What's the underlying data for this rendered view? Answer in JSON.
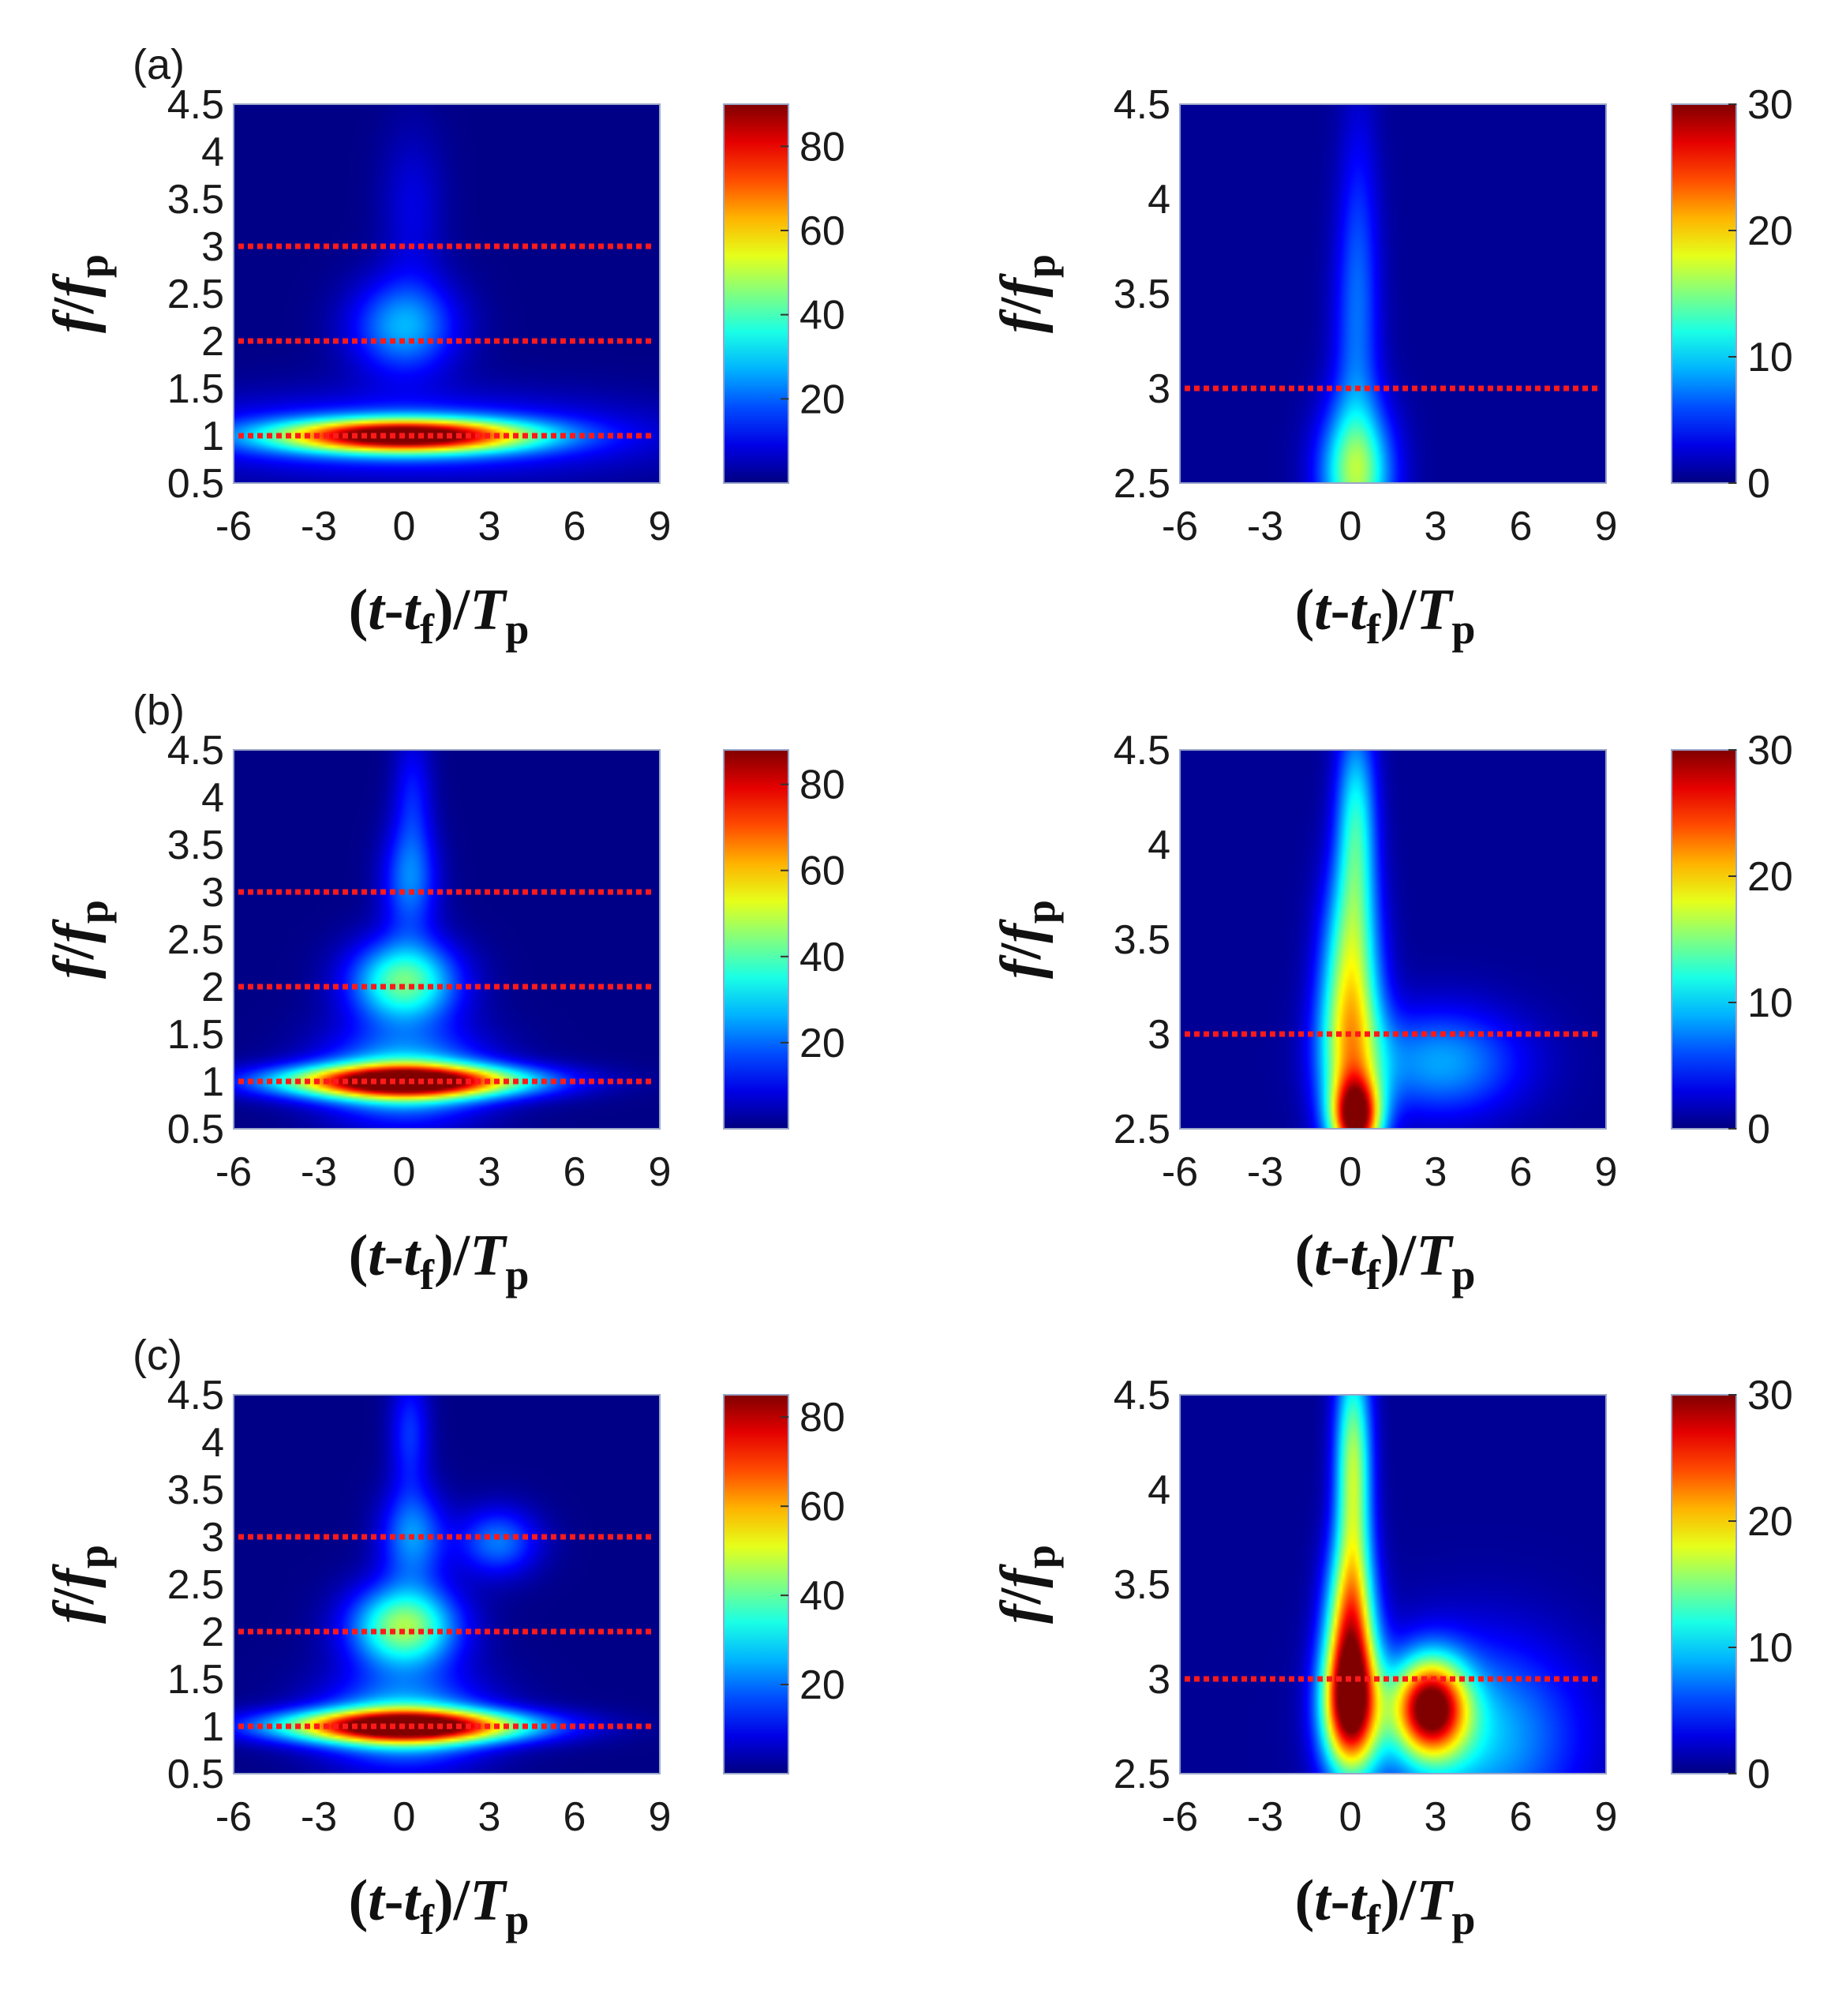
{
  "chart_data": [
    {
      "type": "heatmap",
      "panel_label": "(a)",
      "position": "row1-left",
      "xlabel": "(t-tf)/Tp",
      "ylabel": "f/fp",
      "xlim": [
        -6,
        9
      ],
      "ylim": [
        0.5,
        4.5
      ],
      "xticks": [
        "-6",
        "-3",
        "0",
        "3",
        "6",
        "9"
      ],
      "yticks": [
        "0.5",
        "1",
        "1.5",
        "2",
        "2.5",
        "3",
        "3.5",
        "4",
        "4.5"
      ],
      "reference_lines_y": [
        1,
        2,
        3
      ],
      "colorbar": {
        "range": [
          0,
          90
        ],
        "ticks": [
          "20",
          "40",
          "60",
          "80"
        ]
      },
      "blobs": [
        {
          "t": 0,
          "f": 1.0,
          "peak": 90,
          "st": 3.0,
          "sf": 0.12
        },
        {
          "t": 0,
          "f": 1.0,
          "peak": 18,
          "st": 6.0,
          "sf": 0.3
        },
        {
          "t": 0,
          "f": 2.15,
          "peak": 26,
          "st": 1.3,
          "sf": 0.35
        },
        {
          "t": 0.3,
          "f": 3.4,
          "peak": 8,
          "st": 0.8,
          "sf": 0.6
        }
      ]
    },
    {
      "type": "heatmap",
      "panel_label": "",
      "position": "row1-right",
      "xlabel": "(t-tf)/Tp",
      "ylabel": "f/fp",
      "xlim": [
        -6,
        9
      ],
      "ylim": [
        2.5,
        4.5
      ],
      "xticks": [
        "-6",
        "-3",
        "0",
        "3",
        "6",
        "9"
      ],
      "yticks": [
        "2.5",
        "3",
        "3.5",
        "4",
        "4.5"
      ],
      "reference_lines_y": [
        3
      ],
      "colorbar": {
        "range": [
          0,
          30
        ],
        "ticks": [
          "0",
          "10",
          "20",
          "30"
        ]
      },
      "blobs": [
        {
          "t": 0.2,
          "f": 2.55,
          "peak": 14,
          "st": 0.9,
          "sf": 0.25
        },
        {
          "t": 0.2,
          "f": 3.2,
          "peak": 5,
          "st": 0.6,
          "sf": 0.5
        },
        {
          "t": 0.3,
          "f": 3.9,
          "peak": 3,
          "st": 0.5,
          "sf": 0.5
        }
      ]
    },
    {
      "type": "heatmap",
      "panel_label": "(b)",
      "position": "row2-left",
      "xlabel": "(t-tf)/Tp",
      "ylabel": "f/fp",
      "xlim": [
        -6,
        9
      ],
      "ylim": [
        0.5,
        4.5
      ],
      "xticks": [
        "-6",
        "-3",
        "0",
        "3",
        "6",
        "9"
      ],
      "yticks": [
        "0.5",
        "1",
        "1.5",
        "2",
        "2.5",
        "3",
        "3.5",
        "4",
        "4.5"
      ],
      "reference_lines_y": [
        1,
        2,
        3
      ],
      "colorbar": {
        "range": [
          0,
          88
        ],
        "ticks": [
          "20",
          "40",
          "60",
          "80"
        ]
      },
      "blobs": [
        {
          "t": 0,
          "f": 1.0,
          "peak": 88,
          "st": 3.0,
          "sf": 0.12
        },
        {
          "t": 0,
          "f": 1.05,
          "peak": 30,
          "st": 2.0,
          "sf": 0.35
        },
        {
          "t": 0,
          "f": 2.05,
          "peak": 42,
          "st": 1.3,
          "sf": 0.3
        },
        {
          "t": 0.2,
          "f": 3.1,
          "peak": 20,
          "st": 0.7,
          "sf": 0.4
        },
        {
          "t": 0.3,
          "f": 4.0,
          "peak": 12,
          "st": 0.5,
          "sf": 0.5
        }
      ]
    },
    {
      "type": "heatmap",
      "panel_label": "",
      "position": "row2-right",
      "xlabel": "(t-tf)/Tp",
      "ylabel": "f/fp",
      "xlim": [
        -6,
        9
      ],
      "ylim": [
        2.5,
        4.5
      ],
      "xticks": [
        "-6",
        "-3",
        "0",
        "3",
        "6",
        "9"
      ],
      "yticks": [
        "2.5",
        "3",
        "3.5",
        "4",
        "4.5"
      ],
      "reference_lines_y": [
        3
      ],
      "colorbar": {
        "range": [
          0,
          30
        ],
        "ticks": [
          "0",
          "10",
          "20",
          "30"
        ]
      },
      "blobs": [
        {
          "t": 0.2,
          "f": 2.55,
          "peak": 26,
          "st": 0.6,
          "sf": 0.15
        },
        {
          "t": 0,
          "f": 2.9,
          "peak": 14,
          "st": 0.8,
          "sf": 0.3
        },
        {
          "t": 0,
          "f": 3.4,
          "peak": 12,
          "st": 0.7,
          "sf": 0.35
        },
        {
          "t": 0.2,
          "f": 4.1,
          "peak": 11,
          "st": 0.5,
          "sf": 0.4
        },
        {
          "t": 3.2,
          "f": 2.85,
          "peak": 8,
          "st": 2.0,
          "sf": 0.2
        }
      ]
    },
    {
      "type": "heatmap",
      "panel_label": "(c)",
      "position": "row3-left",
      "xlabel": "(t-tf)/Tp",
      "ylabel": "f/fp",
      "xlim": [
        -6,
        9
      ],
      "ylim": [
        0.5,
        4.5
      ],
      "xticks": [
        "-6",
        "-3",
        "0",
        "3",
        "6",
        "9"
      ],
      "yticks": [
        "0.5",
        "1",
        "1.5",
        "2",
        "2.5",
        "3",
        "3.5",
        "4",
        "4.5"
      ],
      "reference_lines_y": [
        1,
        2,
        3
      ],
      "colorbar": {
        "range": [
          0,
          85
        ],
        "ticks": [
          "20",
          "40",
          "60",
          "80"
        ]
      },
      "blobs": [
        {
          "t": 0,
          "f": 1.0,
          "peak": 85,
          "st": 3.0,
          "sf": 0.12
        },
        {
          "t": 0,
          "f": 1.05,
          "peak": 28,
          "st": 2.0,
          "sf": 0.35
        },
        {
          "t": 0,
          "f": 2.05,
          "peak": 45,
          "st": 1.3,
          "sf": 0.3
        },
        {
          "t": 0.3,
          "f": 3.0,
          "peak": 22,
          "st": 0.8,
          "sf": 0.35
        },
        {
          "t": 3.3,
          "f": 2.95,
          "peak": 20,
          "st": 1.0,
          "sf": 0.25
        },
        {
          "t": 0.2,
          "f": 4.1,
          "peak": 14,
          "st": 0.5,
          "sf": 0.45
        }
      ]
    },
    {
      "type": "heatmap",
      "panel_label": "",
      "position": "row3-right",
      "xlabel": "(t-tf)/Tp",
      "ylabel": "f/fp",
      "xlim": [
        -6,
        9
      ],
      "ylim": [
        2.5,
        4.5
      ],
      "xticks": [
        "-6",
        "-3",
        "0",
        "3",
        "6",
        "9"
      ],
      "yticks": [
        "2.5",
        "3",
        "3.5",
        "4",
        "4.5"
      ],
      "reference_lines_y": [
        3
      ],
      "colorbar": {
        "range": [
          0,
          30
        ],
        "ticks": [
          "0",
          "10",
          "20",
          "30"
        ]
      },
      "blobs": [
        {
          "t": 0,
          "f": 2.85,
          "peak": 28,
          "st": 0.7,
          "sf": 0.25
        },
        {
          "t": 2.8,
          "f": 2.85,
          "peak": 27,
          "st": 0.9,
          "sf": 0.18
        },
        {
          "t": 0,
          "f": 3.3,
          "peak": 18,
          "st": 0.6,
          "sf": 0.3
        },
        {
          "t": 0.1,
          "f": 4.1,
          "peak": 16,
          "st": 0.45,
          "sf": 0.45
        },
        {
          "t": 4.5,
          "f": 2.7,
          "peak": 9,
          "st": 2.5,
          "sf": 0.35
        }
      ]
    }
  ]
}
